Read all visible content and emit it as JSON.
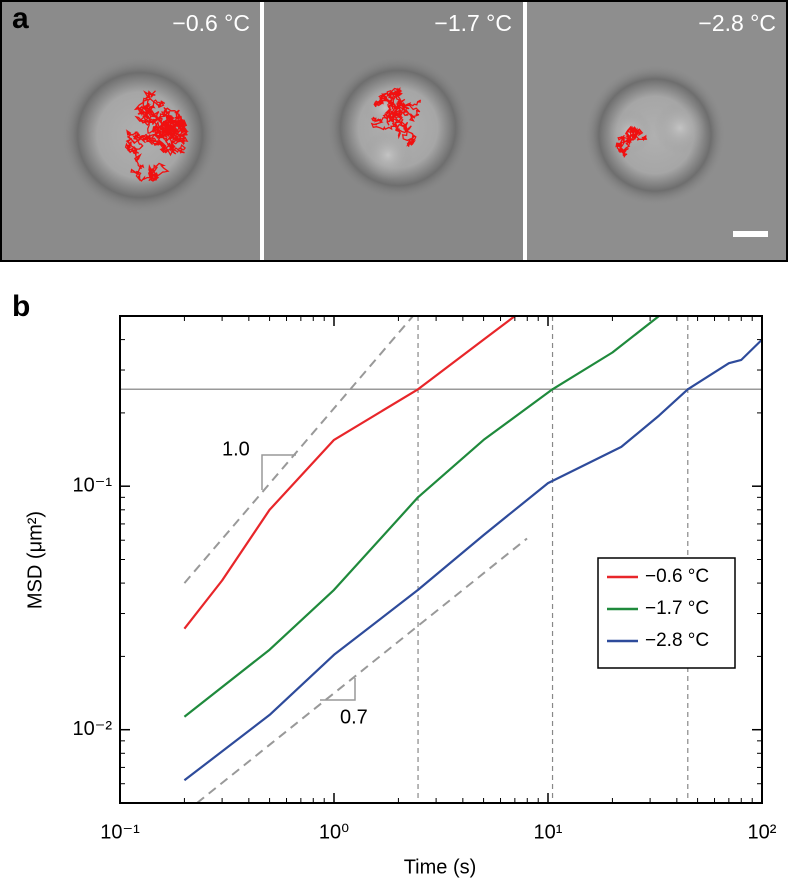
{
  "panel_labels": [
    "a",
    "b"
  ],
  "image_labels": [
    "−0.6 °C",
    "−1.7 °C",
    "−2.8 °C"
  ],
  "chart_data": {
    "type": "line",
    "xlabel": "Time (s)",
    "ylabel": "MSD (μm²)",
    "log_x": true,
    "log_y": true,
    "xlim": [
      0.1,
      100
    ],
    "ylim": [
      0.005,
      0.5
    ],
    "xticks": [
      {
        "value": 0.1,
        "label": "10⁻¹"
      },
      {
        "value": 1,
        "label": "10⁰"
      },
      {
        "value": 10,
        "label": "10¹"
      },
      {
        "value": 100,
        "label": "10²"
      }
    ],
    "yticks": [
      {
        "value": 0.01,
        "label": "10⁻²"
      },
      {
        "value": 0.1,
        "label": "10⁻¹"
      }
    ],
    "legend": "right",
    "series": [
      {
        "name": "−0.6 °C",
        "color": "#e8262a",
        "x": [
          0.2,
          0.3,
          0.5,
          1,
          2.47,
          5,
          7
        ],
        "values": [
          0.026,
          0.041,
          0.08,
          0.155,
          0.25,
          0.4,
          0.5
        ]
      },
      {
        "name": "−1.7 °C",
        "color": "#1f8a3c",
        "x": [
          0.2,
          0.5,
          1,
          2.47,
          5,
          10.5,
          20,
          33
        ],
        "values": [
          0.0113,
          0.0213,
          0.0375,
          0.09,
          0.155,
          0.25,
          0.354,
          0.5
        ]
      },
      {
        "name": "−2.8 °C",
        "color": "#2e4b9b",
        "x": [
          0.2,
          0.5,
          1,
          2.47,
          5,
          10,
          22,
          33,
          45,
          70,
          80,
          100
        ],
        "values": [
          0.0062,
          0.0115,
          0.0203,
          0.0375,
          0.063,
          0.103,
          0.145,
          0.195,
          0.25,
          0.32,
          0.33,
          0.4
        ]
      }
    ],
    "reference_lines": {
      "y": [
        0.25
      ],
      "x": [
        2.47,
        10.5,
        45
      ]
    },
    "guides": [
      {
        "x": [
          0.2,
          2.34
        ],
        "y": [
          0.04,
          0.5
        ],
        "label": "1.0"
      },
      {
        "x": [
          0.229,
          7.98
        ],
        "y": [
          0.005,
          0.061
        ],
        "label": "0.7"
      }
    ]
  }
}
